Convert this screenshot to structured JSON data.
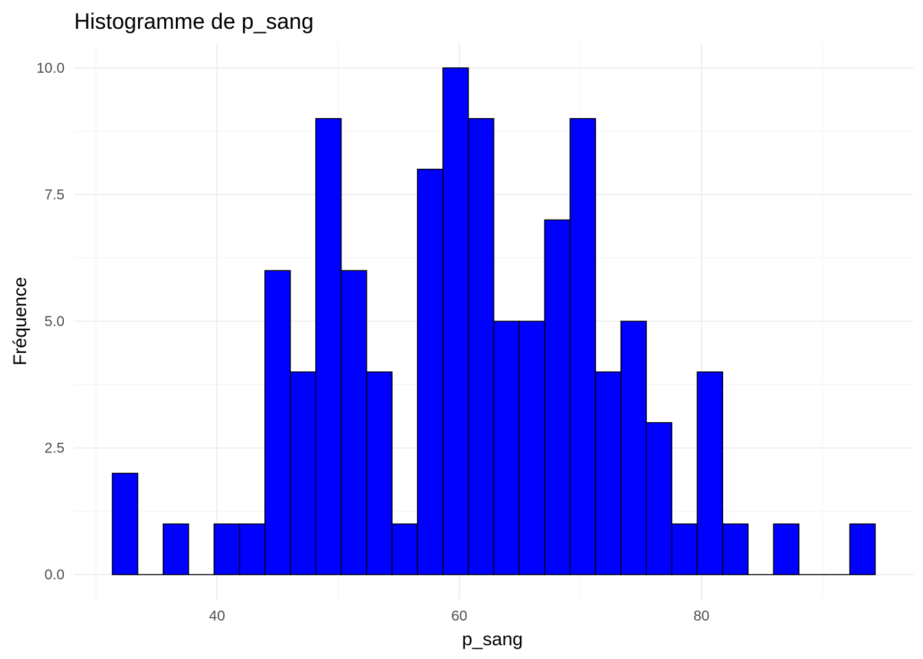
{
  "chart_data": {
    "type": "bar",
    "title": "Histogramme de p_sang",
    "xlabel": "p_sang",
    "ylabel": "Fréquence",
    "bin_width": 2.1,
    "bins": [
      {
        "x0": 31.35,
        "x1": 33.45,
        "count": 2
      },
      {
        "x0": 33.45,
        "x1": 35.55,
        "count": 0
      },
      {
        "x0": 35.55,
        "x1": 37.65,
        "count": 1
      },
      {
        "x0": 37.65,
        "x1": 39.75,
        "count": 0
      },
      {
        "x0": 39.75,
        "x1": 41.85,
        "count": 1
      },
      {
        "x0": 41.85,
        "x1": 43.95,
        "count": 1
      },
      {
        "x0": 43.95,
        "x1": 46.05,
        "count": 6
      },
      {
        "x0": 46.05,
        "x1": 48.15,
        "count": 4
      },
      {
        "x0": 48.15,
        "x1": 50.25,
        "count": 9
      },
      {
        "x0": 50.25,
        "x1": 52.35,
        "count": 6
      },
      {
        "x0": 52.35,
        "x1": 54.45,
        "count": 4
      },
      {
        "x0": 54.45,
        "x1": 56.55,
        "count": 1
      },
      {
        "x0": 56.55,
        "x1": 58.65,
        "count": 8
      },
      {
        "x0": 58.65,
        "x1": 60.75,
        "count": 10
      },
      {
        "x0": 60.75,
        "x1": 62.85,
        "count": 9
      },
      {
        "x0": 62.85,
        "x1": 64.95,
        "count": 5
      },
      {
        "x0": 64.95,
        "x1": 67.05,
        "count": 5
      },
      {
        "x0": 67.05,
        "x1": 69.15,
        "count": 7
      },
      {
        "x0": 69.15,
        "x1": 71.25,
        "count": 9
      },
      {
        "x0": 71.25,
        "x1": 73.35,
        "count": 4
      },
      {
        "x0": 73.35,
        "x1": 75.45,
        "count": 5
      },
      {
        "x0": 75.45,
        "x1": 77.55,
        "count": 3
      },
      {
        "x0": 77.55,
        "x1": 79.65,
        "count": 1
      },
      {
        "x0": 79.65,
        "x1": 81.75,
        "count": 4
      },
      {
        "x0": 81.75,
        "x1": 83.85,
        "count": 1
      },
      {
        "x0": 83.85,
        "x1": 85.95,
        "count": 0
      },
      {
        "x0": 85.95,
        "x1": 88.05,
        "count": 1
      },
      {
        "x0": 88.05,
        "x1": 90.15,
        "count": 0
      },
      {
        "x0": 90.15,
        "x1": 92.25,
        "count": 0
      },
      {
        "x0": 92.25,
        "x1": 94.35,
        "count": 1
      }
    ],
    "xlim": [
      28.2,
      97.5
    ],
    "ylim": [
      -0.5,
      10.5
    ],
    "x_ticks": [
      40,
      60,
      80
    ],
    "x_tick_labels": [
      "40",
      "60",
      "80"
    ],
    "y_ticks": [
      0,
      2.5,
      5,
      7.5,
      10
    ],
    "y_tick_labels": [
      "0.0",
      "2.5",
      "5.0",
      "7.5",
      "10.0"
    ],
    "grid": true,
    "legend": "none",
    "colors": {
      "bar_fill": "#0000ff",
      "bar_outline": "#000000"
    }
  }
}
